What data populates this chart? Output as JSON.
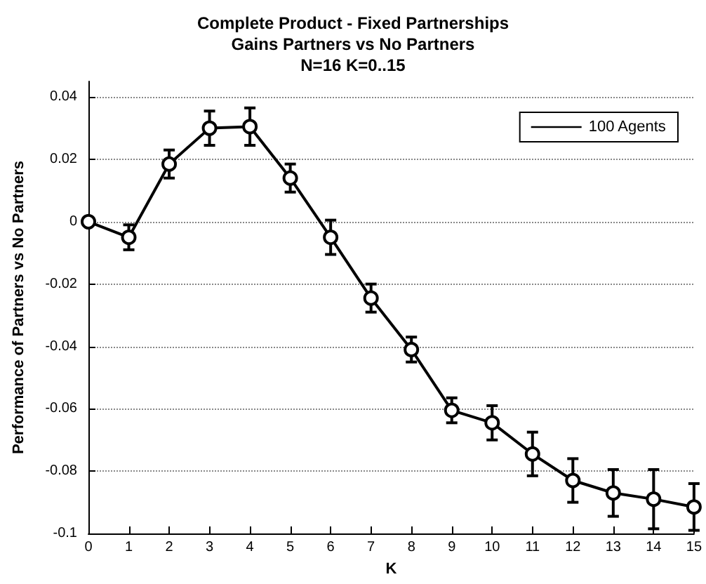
{
  "chart_data": {
    "type": "line",
    "title": "Complete Product - Fixed Partnerships\nGains Partners vs No Partners\nN=16 K=0..15",
    "xlabel": "K",
    "ylabel": "Performance of Partners vs No Partners",
    "x": [
      0,
      1,
      2,
      3,
      4,
      5,
      6,
      7,
      8,
      9,
      10,
      11,
      12,
      13,
      14,
      15
    ],
    "series": [
      {
        "name": "100 Agents",
        "color": "#000000",
        "values": [
          0,
          -0.005,
          0.0185,
          0.03,
          0.0305,
          0.014,
          -0.005,
          -0.0245,
          -0.041,
          -0.0605,
          -0.0645,
          -0.0745,
          -0.083,
          -0.087,
          -0.089,
          -0.0915
        ],
        "errors": [
          0.0005,
          0.004,
          0.0045,
          0.0055,
          0.006,
          0.0045,
          0.0055,
          0.0045,
          0.004,
          0.004,
          0.0055,
          0.007,
          0.007,
          0.0075,
          0.0095,
          0.0075
        ]
      }
    ],
    "xlim": [
      0,
      15
    ],
    "xticks": [
      0,
      1,
      2,
      3,
      4,
      5,
      6,
      7,
      8,
      9,
      10,
      11,
      12,
      13,
      14,
      15
    ],
    "ylim": [
      -0.1,
      0.045
    ],
    "yticks": [
      -0.1,
      -0.08,
      -0.06,
      -0.04,
      -0.02,
      0,
      0.02,
      0.04
    ],
    "grid": "y",
    "legend": "top right",
    "marker": "circle",
    "line_style": "solid"
  }
}
